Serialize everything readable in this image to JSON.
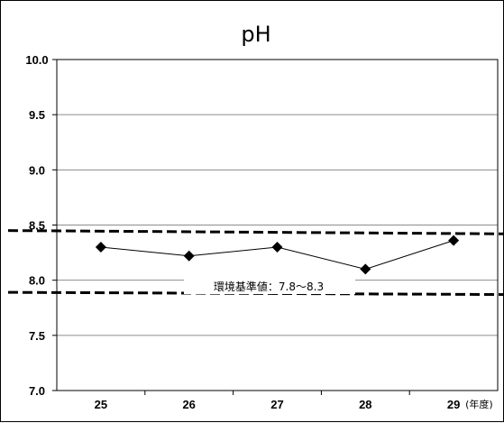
{
  "chart_data": {
    "type": "line",
    "title": "pH",
    "x_unit": "(年度)",
    "categories": [
      "25",
      "26",
      "27",
      "28",
      "29"
    ],
    "series": [
      {
        "values": [
          8.3,
          8.22,
          8.3,
          8.1,
          8.36
        ],
        "marker": "diamond",
        "color": "#000000"
      }
    ],
    "ylim": [
      7.0,
      10.0
    ],
    "yticks": [
      "7.0",
      "7.5",
      "8.0",
      "8.5",
      "9.0",
      "9.5",
      "10.0"
    ],
    "grid": true,
    "reference_lines": [
      {
        "value": 8.45,
        "end_value": 8.42,
        "style": "dashed"
      },
      {
        "value": 7.89,
        "end_value": 7.87,
        "style": "dashed"
      }
    ],
    "annotation": "環境基準値：7.8～8.3"
  }
}
